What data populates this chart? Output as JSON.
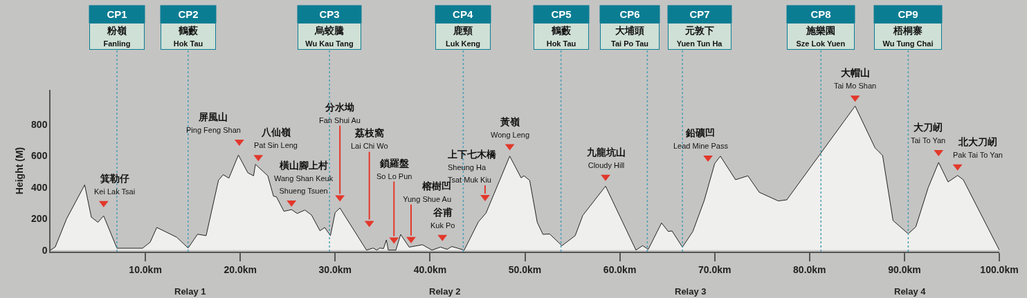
{
  "chart_data": {
    "type": "area",
    "ylabel": "Height (M)",
    "series": [
      {
        "color": "#efefed",
        "x": [
          0,
          0.5,
          1.7,
          3.6,
          4.3,
          5.0,
          5.6,
          7.0,
          9.7,
          10.5,
          11.2,
          13.3,
          14.5,
          15.5,
          16.4,
          17.7,
          18.2,
          18.8,
          19.8,
          20.8,
          21.4,
          21.6,
          22.9,
          23.5,
          23.8,
          24.6,
          25.4,
          26.0,
          26.8,
          27.5,
          28.4,
          28.9,
          29.5,
          30.0,
          30.5,
          33.3,
          34.0,
          34.4,
          34.7,
          35.1,
          35.4,
          35.6,
          36.4,
          36.9,
          37.8,
          39.2,
          40.2,
          41.1,
          41.8,
          42.3,
          43.6,
          45.1,
          45.9,
          48.4,
          49.6,
          49.9,
          50.5,
          51.3,
          51.9,
          52.6,
          53.9,
          55.3,
          56.1,
          58.5,
          61.7,
          62.4,
          63.0,
          64.4,
          65.1,
          65.5,
          66.6,
          67.7,
          68.9,
          70.0,
          70.6,
          72.2,
          73.5,
          74.7,
          76.7,
          77.6,
          84.8,
          86.9,
          87.7,
          88.8,
          90.4,
          91.2,
          92.5,
          93.6,
          94.6,
          95.6,
          96.2,
          100
        ],
        "values": [
          0,
          20,
          200,
          415,
          210,
          177,
          218,
          12,
          12,
          50,
          144,
          82,
          13,
          101,
          92,
          444,
          480,
          458,
          605,
          492,
          473,
          546,
          473,
          343,
          340,
          247,
          258,
          233,
          255,
          224,
          123,
          144,
          92,
          239,
          268,
          0,
          13,
          0,
          13,
          10,
          65,
          0,
          0,
          100,
          19,
          34,
          0,
          19,
          5,
          23,
          0,
          180,
          236,
          598,
          460,
          473,
          444,
          177,
          100,
          103,
          28,
          92,
          221,
          407,
          0,
          28,
          5,
          173,
          119,
          122,
          19,
          119,
          316,
          551,
          598,
          448,
          473,
          368,
          313,
          320,
          917,
          651,
          602,
          188,
          104,
          148,
          397,
          558,
          434,
          475,
          448,
          0
        ]
      },
      {
        "type": "scatter",
        "color": "#e2382b",
        "marker": "triangle",
        "x": [
          5.6,
          19.9,
          21.9,
          25.4,
          30.5,
          33.6,
          36.2,
          38.0,
          41.3,
          45.8,
          48.4,
          58.5,
          69.3,
          84.8,
          93.6,
          95.6
        ],
        "values": [
          299,
          690,
          592,
          302,
          335,
          173,
          67,
          70,
          84,
          338,
          661,
          467,
          589,
          971,
          624,
          533
        ]
      }
    ],
    "xlim": [
      0,
      100
    ],
    "xticks": [
      {
        "value": 10,
        "label": "10.0km"
      },
      {
        "value": 20,
        "label": "20.0km"
      },
      {
        "value": 30,
        "label": "30.0km"
      },
      {
        "value": 40,
        "label": "40.0km"
      },
      {
        "value": 50,
        "label": "50.0km"
      },
      {
        "value": 60,
        "label": "60.0km"
      },
      {
        "value": 70,
        "label": "70.0km"
      },
      {
        "value": 80,
        "label": "80.0km"
      },
      {
        "value": 90,
        "label": "90.0km"
      },
      {
        "value": 100,
        "label": "100.0km"
      }
    ],
    "ylim": [
      -10,
      1020
    ],
    "yticks": [
      0,
      200,
      400,
      600,
      800
    ],
    "ref_lines": [
      {
        "axis": "x",
        "value": 7.0,
        "label": "CP1\n粉嶺\nFanling",
        "color": "#4a9fb5",
        "line_style": "dotted"
      },
      {
        "axis": "x",
        "value": 14.5,
        "label": "CP2\n鶴藪\nHok Tau",
        "color": "#4a9fb5",
        "line_style": "dotted"
      },
      {
        "axis": "x",
        "value": 29.4,
        "label": "CP3\n烏蛟騰\nWu Kau Tang",
        "color": "#4a9fb5",
        "line_style": "dotted"
      },
      {
        "axis": "x",
        "value": 43.5,
        "label": "CP4\n鹿頸\nLuk Keng",
        "color": "#4a9fb5",
        "line_style": "dotted"
      },
      {
        "axis": "x",
        "value": 53.8,
        "label": "CP5\n鶴藪\nHok Tau",
        "color": "#4a9fb5",
        "line_style": "dotted"
      },
      {
        "axis": "x",
        "value": 62.9,
        "label": "CP6\n大埔頭\nTai Po Tau",
        "color": "#4a9fb5",
        "line_style": "dotted"
      },
      {
        "axis": "x",
        "value": 66.6,
        "label": "CP7\n元敦下\nYuen Tun Ha",
        "color": "#4a9fb5",
        "line_style": "dotted"
      },
      {
        "axis": "x",
        "value": 81.2,
        "label": "CP8\n施樂園\nSze Lok Yuen",
        "color": "#4a9fb5",
        "line_style": "dotted"
      },
      {
        "axis": "x",
        "value": 90.4,
        "label": "CP9\n梧桐寨\nWu Tung Chai",
        "color": "#4a9fb5",
        "line_style": "dotted"
      }
    ],
    "annotations": [
      {
        "text": "箕勒仔\nKei Lak Tsai",
        "x": 5.6,
        "y": 299
      },
      {
        "text": "屏風山\nPing Feng Shan",
        "x": 19.9,
        "y": 690
      },
      {
        "text": "八仙嶺\nPat Sin Leng",
        "x": 21.9,
        "y": 592
      },
      {
        "text": "橫山腳上村\nWang Shan Keuk\nShueng Tsuen",
        "x": 25.4,
        "y": 302
      },
      {
        "text": "分水坳\nFan Shui Au",
        "x": 30.5,
        "y": 335
      },
      {
        "text": "荔枝窩\nLai Chi Wo",
        "x": 33.6,
        "y": 173
      },
      {
        "text": "鎖羅盤\nSo Lo Pun",
        "x": 36.2,
        "y": 67
      },
      {
        "text": "榕樹凹\nYung Shue Au",
        "x": 38.0,
        "y": 70
      },
      {
        "text": "谷甫\nKuk Po",
        "x": 41.3,
        "y": 84
      },
      {
        "text": "上下七木橋\nSheung Ha\nTsat Muk Kiu",
        "x": 45.8,
        "y": 338
      },
      {
        "text": "黃嶺\nWong Leng",
        "x": 48.4,
        "y": 661
      },
      {
        "text": "九龍坑山\nCloudy Hill",
        "x": 58.5,
        "y": 467
      },
      {
        "text": "鉛礦凹\nLead Mine Pass",
        "x": 69.3,
        "y": 589
      },
      {
        "text": "大帽山\nTai Mo Shan",
        "x": 84.8,
        "y": 971
      },
      {
        "text": "大刀屻\nTai To Yan",
        "x": 93.6,
        "y": 624
      },
      {
        "text": "北大刀屻\nPak Tai To Yan",
        "x": 95.6,
        "y": 533
      },
      "Relay 1",
      "Relay 2",
      "Relay 3",
      "Relay 4"
    ]
  }
}
